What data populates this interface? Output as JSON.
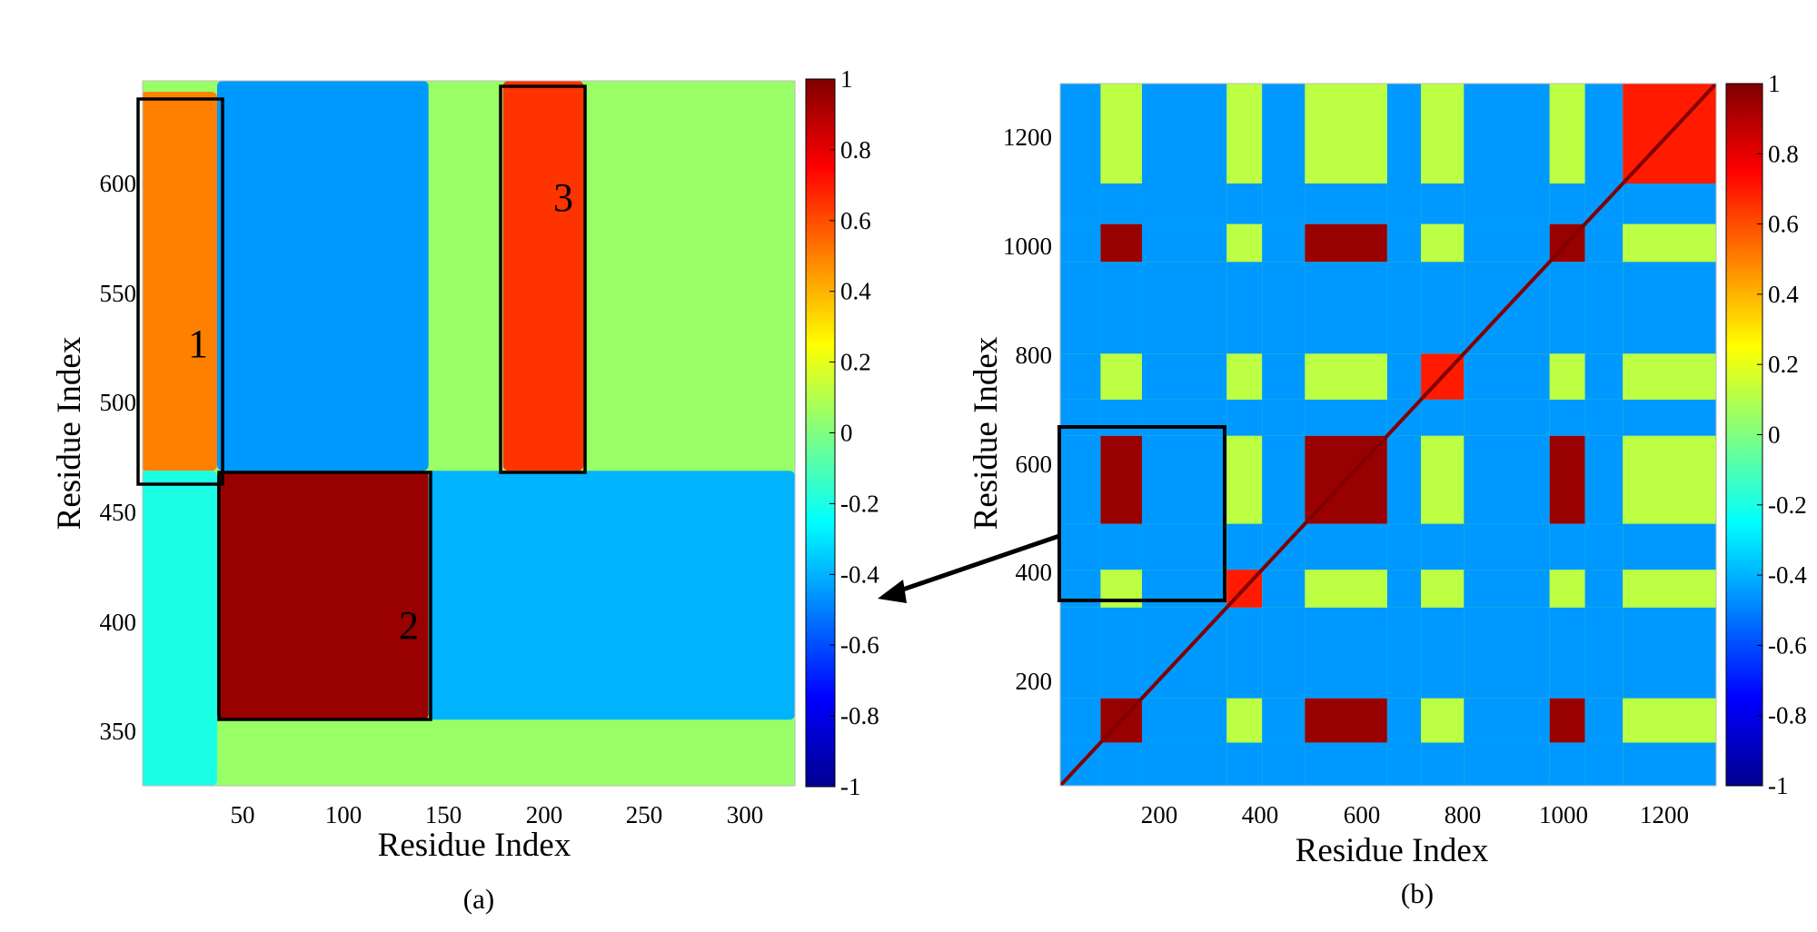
{
  "figure": {
    "colors": {
      "jet": [
        "#00008f",
        "#0000ff",
        "#0080ff",
        "#00ffff",
        "#80ff80",
        "#ffff00",
        "#ff8000",
        "#ff0000",
        "#800000"
      ],
      "box": "#000000",
      "arrow": "#000000"
    }
  },
  "chart_data": [
    {
      "type": "heatmap",
      "panel_label": "(a)",
      "title": "",
      "xlabel": "Residue Index",
      "ylabel": "Residue Index",
      "xlim": [
        1,
        325
      ],
      "ylim": [
        325,
        645
      ],
      "xticks": [
        50,
        100,
        150,
        200,
        250,
        300
      ],
      "xtick_labels": [
        "50",
        "100",
        "150",
        "200",
        "250",
        "300"
      ],
      "yticks": [
        350,
        400,
        450,
        500,
        550,
        600
      ],
      "ytick_labels": [
        "350",
        "400",
        "450",
        "500",
        "550",
        "600"
      ],
      "colorbar": {
        "range": [
          -1,
          1
        ],
        "ticks": [
          1,
          0.8,
          0.6,
          0.4,
          0.2,
          0,
          -0.2,
          -0.4,
          -0.6,
          -0.8,
          -1
        ],
        "tick_labels": [
          "1",
          "0.8",
          "0.6",
          "0.4",
          "0.2",
          "0",
          "-0.2",
          "-0.4",
          "-0.6",
          "-0.8",
          "-1"
        ]
      },
      "regions": [
        {
          "label": "1",
          "x": [
            0,
            40
          ],
          "y": [
            462,
            640
          ]
        },
        {
          "label": "2",
          "x": [
            38,
            143
          ],
          "y": [
            355,
            468
          ]
        },
        {
          "label": "3",
          "x": [
            178,
            220
          ],
          "y": [
            468,
            645
          ]
        }
      ],
      "correlation_blocks": [
        {
          "x": [
            38,
            143
          ],
          "y": [
            355,
            468
          ],
          "value": 0.95
        },
        {
          "x": [
            0,
            38
          ],
          "y": [
            468,
            640
          ],
          "value": 0.5
        },
        {
          "x": [
            180,
            220
          ],
          "y": [
            468,
            645
          ],
          "value": 0.65
        },
        {
          "x": [
            38,
            143
          ],
          "y": [
            468,
            645
          ],
          "value": -0.45
        },
        {
          "x": [
            143,
            325
          ],
          "y": [
            355,
            468
          ],
          "value": -0.4
        },
        {
          "x": [
            0,
            38
          ],
          "y": [
            325,
            468
          ],
          "value": -0.2
        }
      ]
    },
    {
      "type": "heatmap",
      "panel_label": "(b)",
      "title": "",
      "xlabel": "Residue Index",
      "ylabel": "Residue Index",
      "xlim": [
        0,
        1300
      ],
      "ylim": [
        0,
        1300
      ],
      "xticks": [
        200,
        400,
        600,
        800,
        1000,
        1200
      ],
      "xtick_labels": [
        "200",
        "400",
        "600",
        "800",
        "1000",
        "1200"
      ],
      "yticks": [
        200,
        400,
        600,
        800,
        1000,
        1200
      ],
      "ytick_labels": [
        "200",
        "400",
        "600",
        "800",
        "1000",
        "1200"
      ],
      "colorbar": {
        "range": [
          -1,
          1
        ],
        "ticks": [
          1,
          0.8,
          0.6,
          0.4,
          0.2,
          0,
          -0.2,
          -0.4,
          -0.6,
          -0.8,
          -1
        ],
        "tick_labels": [
          "1",
          "0.8",
          "0.6",
          "0.4",
          "0.2",
          "0",
          "-0.2",
          "-0.4",
          "-0.6",
          "-0.8",
          "-1"
        ]
      },
      "domain_bounds": [
        0,
        80,
        162,
        330,
        400,
        485,
        648,
        715,
        800,
        970,
        1040,
        1115,
        1300
      ],
      "domain_types": [
        "B",
        "W",
        "B",
        "R",
        "B",
        "W",
        "B",
        "R",
        "B",
        "W",
        "B",
        "R"
      ],
      "zoom_region": {
        "x": [
          0,
          325
        ],
        "y": [
          345,
          665
        ]
      }
    }
  ]
}
